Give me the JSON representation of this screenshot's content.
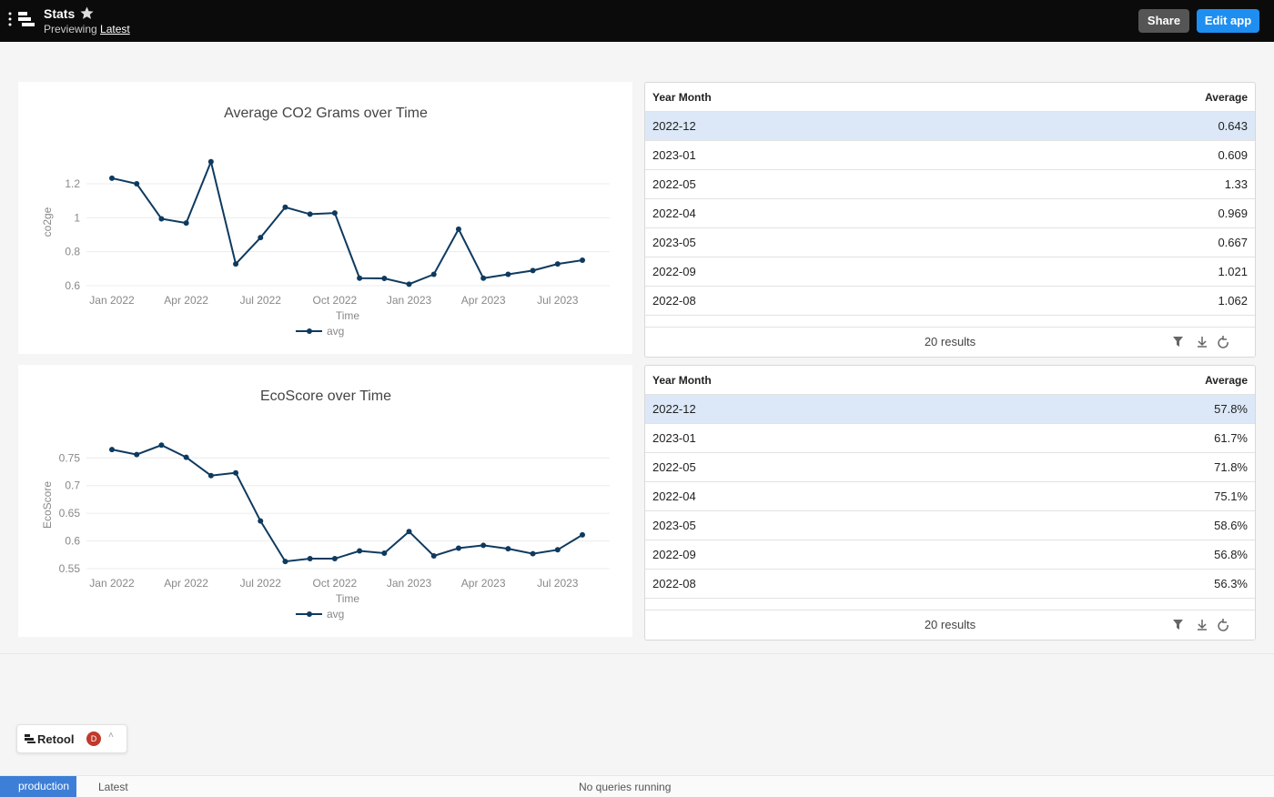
{
  "header": {
    "title": "Stats",
    "subtitle": "Previewing",
    "version": "Latest",
    "buttons": [
      "Share",
      "Edit app"
    ]
  },
  "chart_data": [
    {
      "type": "line",
      "title": "Average CO2 Grams over Time",
      "x_label": "Time",
      "y_label": "co2ge",
      "x": [
        "2022-01",
        "2022-02",
        "2022-03",
        "2022-04",
        "2022-05",
        "2022-06",
        "2022-07",
        "2022-08",
        "2022-09",
        "2022-10",
        "2022-11",
        "2022-12",
        "2023-01",
        "2023-02",
        "2023-03",
        "2023-04",
        "2023-05",
        "2023-06",
        "2023-07",
        "2023-08"
      ],
      "xlim": [
        "2022-01",
        "2023-08"
      ],
      "xticks": [
        {
          "value": "2022-01",
          "label": "Jan 2022"
        },
        {
          "value": "2022-04",
          "label": "Apr 2022"
        },
        {
          "value": "2022-07",
          "label": "Jul 2022"
        },
        {
          "value": "2022-10",
          "label": "Oct 2022"
        },
        {
          "value": "2023-01",
          "label": "Jan 2023"
        },
        {
          "value": "2023-04",
          "label": "Apr 2023"
        },
        {
          "value": "2023-07",
          "label": "Jul 2023"
        }
      ],
      "ylim": [
        0.6,
        1.35
      ],
      "yticks": [
        0.6,
        0.8,
        1,
        1.2
      ],
      "grid": true,
      "legend": "bottom",
      "series": [
        {
          "name": "avg",
          "color": "#0e3a5f",
          "values": [
            1.233,
            1.2,
            0.994,
            0.969,
            1.33,
            0.728,
            0.883,
            1.062,
            1.021,
            1.028,
            0.644,
            0.643,
            0.609,
            0.667,
            0.933,
            0.644,
            0.667,
            0.689,
            0.728,
            0.75
          ]
        }
      ]
    },
    {
      "type": "line",
      "title": "EcoScore over Time",
      "x_label": "Time",
      "y_label": "EcoScore",
      "x": [
        "2022-01",
        "2022-02",
        "2022-03",
        "2022-04",
        "2022-05",
        "2022-06",
        "2022-07",
        "2022-08",
        "2022-09",
        "2022-10",
        "2022-11",
        "2022-12",
        "2023-01",
        "2023-02",
        "2023-03",
        "2023-04",
        "2023-05",
        "2023-06",
        "2023-07",
        "2023-08"
      ],
      "xlim": [
        "2022-01",
        "2023-08"
      ],
      "xticks": [
        {
          "value": "2022-01",
          "label": "Jan 2022"
        },
        {
          "value": "2022-04",
          "label": "Apr 2022"
        },
        {
          "value": "2022-07",
          "label": "Jul 2022"
        },
        {
          "value": "2022-10",
          "label": "Oct 2022"
        },
        {
          "value": "2023-01",
          "label": "Jan 2023"
        },
        {
          "value": "2023-04",
          "label": "Apr 2023"
        },
        {
          "value": "2023-07",
          "label": "Jul 2023"
        }
      ],
      "ylim": [
        0.55,
        0.78
      ],
      "yticks": [
        0.55,
        0.6,
        0.65,
        0.7,
        0.75
      ],
      "grid": true,
      "legend": "bottom",
      "series": [
        {
          "name": "avg",
          "color": "#0e3a5f",
          "values": [
            0.765,
            0.756,
            0.773,
            0.751,
            0.718,
            0.723,
            0.636,
            0.563,
            0.568,
            0.568,
            0.582,
            0.578,
            0.617,
            0.573,
            0.587,
            0.592,
            0.586,
            0.577,
            0.584,
            0.611
          ]
        }
      ]
    }
  ],
  "tables": [
    {
      "columns": [
        "Year Month",
        "Average"
      ],
      "rows": [
        [
          "2022-12",
          "0.643"
        ],
        [
          "2023-01",
          "0.609"
        ],
        [
          "2022-05",
          "1.33"
        ],
        [
          "2022-04",
          "0.969"
        ],
        [
          "2023-05",
          "0.667"
        ],
        [
          "2022-09",
          "1.021"
        ],
        [
          "2022-08",
          "1.062"
        ]
      ],
      "footer": "20 results"
    },
    {
      "columns": [
        "Year Month",
        "Average"
      ],
      "rows": [
        [
          "2022-12",
          "57.8%"
        ],
        [
          "2023-01",
          "61.7%"
        ],
        [
          "2022-05",
          "71.8%"
        ],
        [
          "2022-04",
          "75.1%"
        ],
        [
          "2023-05",
          "58.6%"
        ],
        [
          "2022-09",
          "56.8%"
        ],
        [
          "2022-08",
          "56.3%"
        ]
      ],
      "footer": "20 results"
    }
  ],
  "widget": {
    "name": "Retool",
    "avatar": "D"
  },
  "status_bar": {
    "environment": "production",
    "version": "Latest",
    "status": "No queries running"
  }
}
